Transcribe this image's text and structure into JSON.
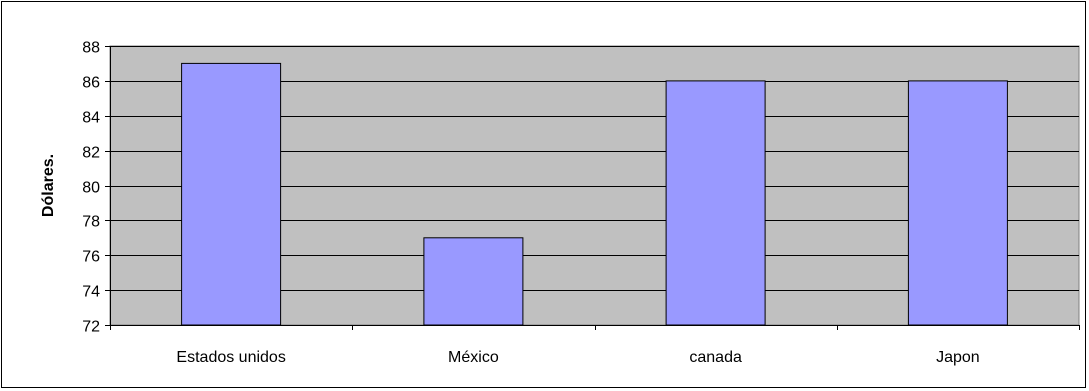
{
  "chart_data": {
    "type": "bar",
    "title": "",
    "xlabel": "",
    "ylabel": "Dólares.",
    "categories": [
      "Estados unidos",
      "México",
      "canada",
      "Japon"
    ],
    "values": [
      87,
      77,
      86,
      86
    ],
    "ylim": [
      72,
      88
    ],
    "yticks": [
      72,
      74,
      76,
      78,
      80,
      82,
      84,
      86,
      88
    ],
    "grid": true,
    "legend": "none",
    "colors": {
      "bar_fill": "#9999ff",
      "bar_stroke": "#000000",
      "plot_background": "#c0c0c0",
      "gridline": "#000000"
    }
  }
}
